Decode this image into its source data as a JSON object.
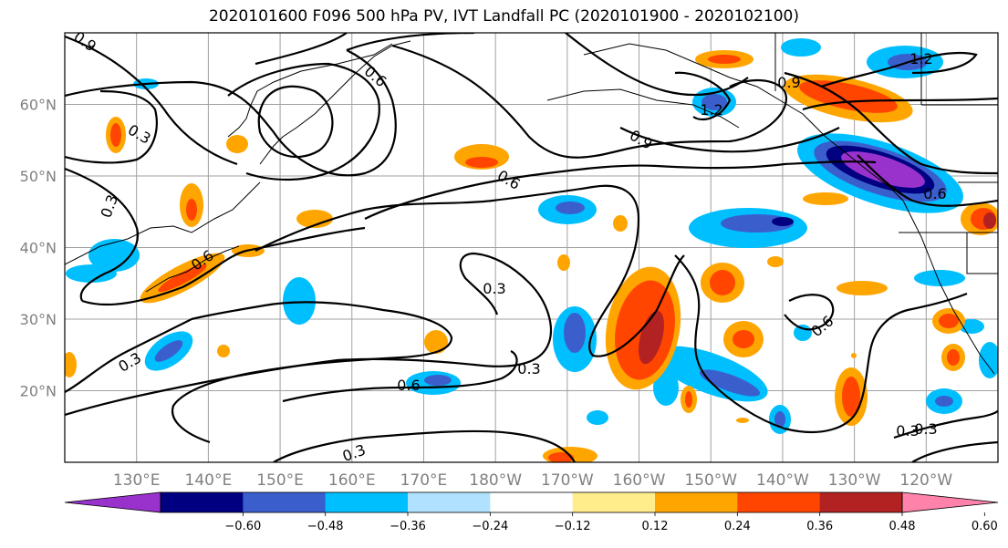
{
  "title": "2020101600 F096 500 hPa PV, IVT Landfall PC (2020101900 - 2020102100)",
  "lat_labels": [
    "60°N",
    "50°N",
    "40°N",
    "30°N",
    "20°N"
  ],
  "lon_labels": [
    "130°E",
    "140°E",
    "150°E",
    "160°E",
    "170°E",
    "180°W",
    "170°W",
    "160°W",
    "150°W",
    "140°W",
    "130°W",
    "120°W"
  ],
  "contour_labels": [
    "0.9",
    "0.3",
    "0.6",
    "0.6",
    "0.9",
    "1.2",
    "0.9",
    "0.6",
    "0.6",
    "0.3",
    "0.3",
    "0.6",
    "0.3",
    "0.3",
    "0.6",
    "0.3",
    "0.3",
    "1.2",
    "0.3"
  ],
  "colorbar": {
    "ticks": [
      "−0.60",
      "−0.48",
      "−0.36",
      "−0.24",
      "−0.12",
      "0.12",
      "0.24",
      "0.36",
      "0.48",
      "0.60"
    ],
    "colors": [
      "#9932cc",
      "#000080",
      "#3a5fcd",
      "#00bfff",
      "#b0e2ff",
      "#ffffff",
      "#ffec8b",
      "#ffa500",
      "#ff4500",
      "#b22222",
      "#ff82ab"
    ]
  },
  "map": {
    "lat_range": [
      10,
      70
    ],
    "lon_range_east": [
      120,
      250
    ],
    "grid": true
  }
}
